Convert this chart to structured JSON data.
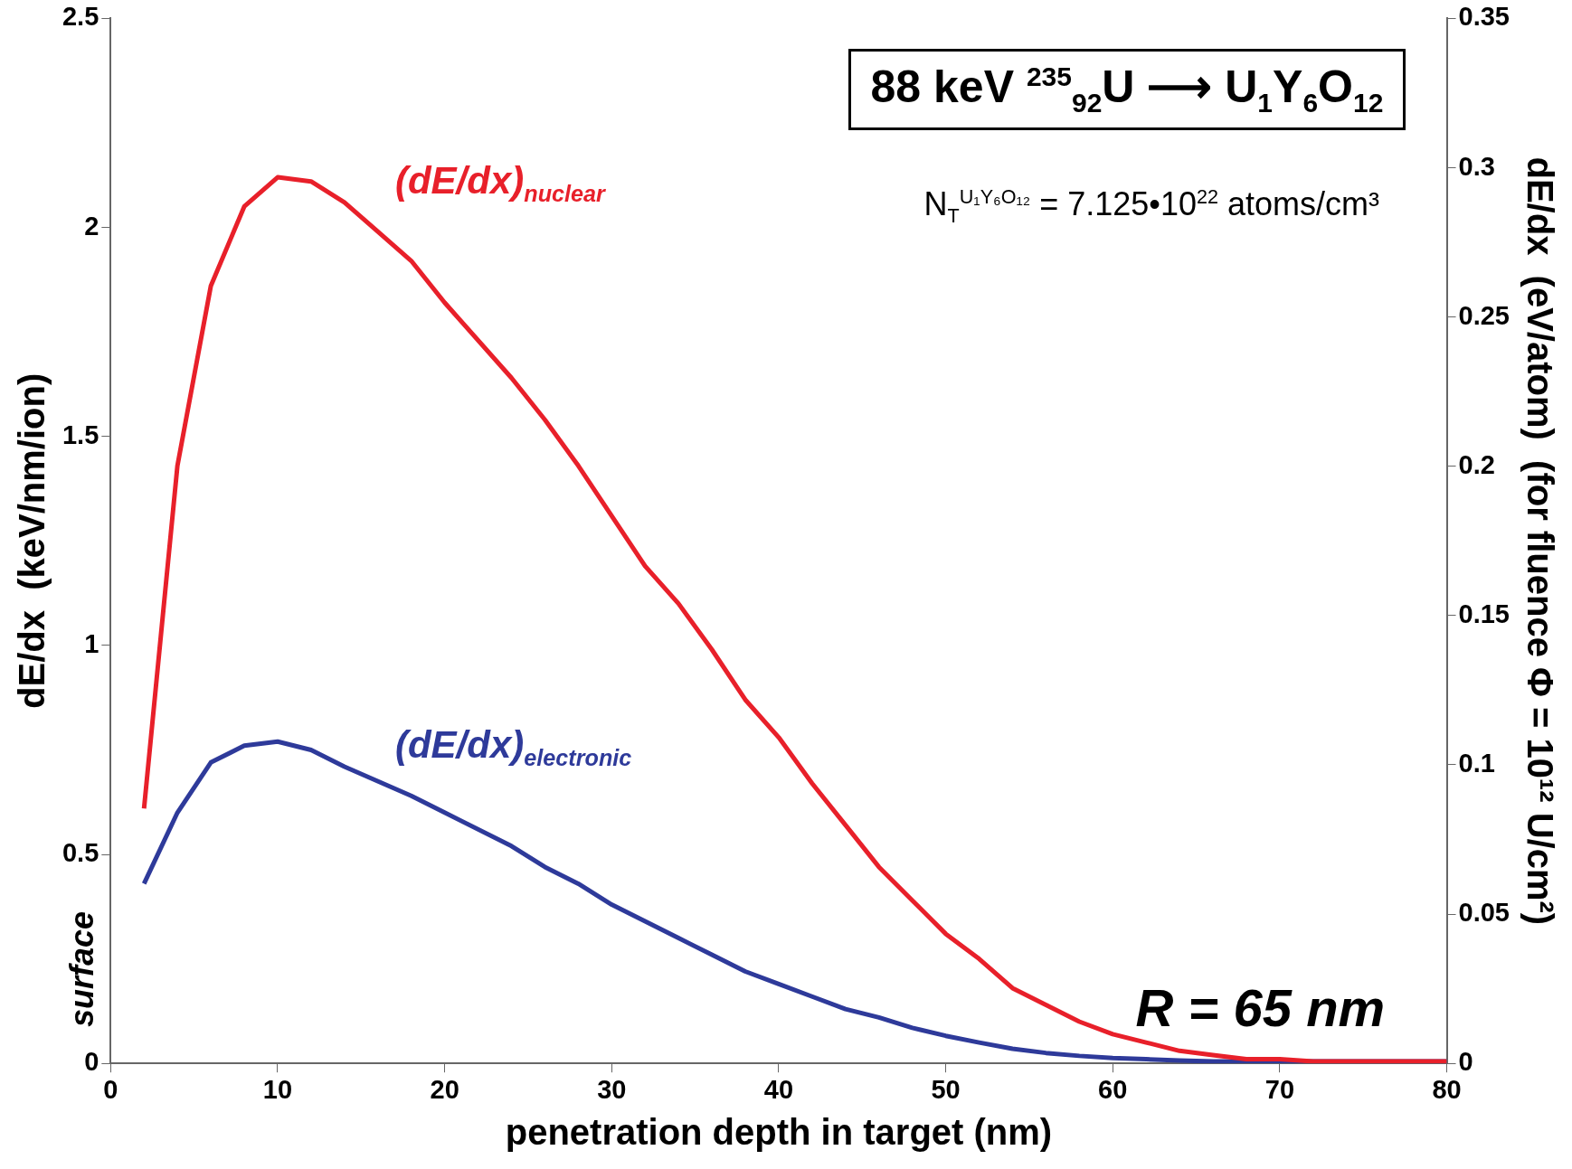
{
  "chart_data": {
    "type": "line",
    "title": "88 keV $^{235}$$_{92}$U ⟶ U$_{1}$Y$_{6}$O$_{12}$",
    "xlabel": "penetration depth in target (nm)",
    "ylabel": "dE/dx  (keV/nm/ion)",
    "y2label": "dE/dx  (eV/atom)  (for fluence Φ = 10¹² U/cm²)",
    "annotations": [
      "N$_{T}$$^{U₁Y₆O₁₂}$ = 7.125•10$^{22}$ atoms/cm³",
      "R = 65 nm",
      "surface"
    ],
    "x": [
      2,
      4,
      6,
      8,
      10,
      12,
      14,
      18,
      20,
      24,
      26,
      28,
      30,
      32,
      34,
      36,
      38,
      40,
      42,
      44,
      46,
      48,
      50,
      52,
      54,
      56,
      58,
      60,
      62,
      64,
      66,
      68,
      70,
      72,
      76,
      80
    ],
    "series": [
      {
        "name": "(dE/dx)$_{nuclear}$",
        "color": "#e8202a",
        "values": [
          0.61,
          1.43,
          1.86,
          2.05,
          2.12,
          2.11,
          2.06,
          1.92,
          1.82,
          1.64,
          1.54,
          1.43,
          1.31,
          1.19,
          1.1,
          0.99,
          0.87,
          0.78,
          0.67,
          0.57,
          0.47,
          0.39,
          0.31,
          0.25,
          0.18,
          0.14,
          0.1,
          0.07,
          0.05,
          0.03,
          0.02,
          0.01,
          0.01,
          0.005,
          0.005,
          0.005
        ]
      },
      {
        "name": "(dE/dx)$_{electronic}$",
        "color": "#2e3a9a",
        "values": [
          0.43,
          0.6,
          0.72,
          0.76,
          0.77,
          0.75,
          0.71,
          0.64,
          0.6,
          0.52,
          0.47,
          0.43,
          0.38,
          0.34,
          0.3,
          0.26,
          0.22,
          0.19,
          0.16,
          0.13,
          0.11,
          0.085,
          0.066,
          0.05,
          0.035,
          0.025,
          0.018,
          0.013,
          0.01,
          0.007,
          0.005,
          0.005,
          0.005,
          0.005,
          0.005,
          0.005
        ]
      }
    ],
    "xlim": [
      0,
      80
    ],
    "xticks": [
      0,
      10,
      20,
      30,
      40,
      50,
      60,
      70,
      80
    ],
    "ylim": [
      0,
      2.5
    ],
    "yticks": [
      0,
      0.5,
      1,
      1.5,
      2,
      2.5
    ],
    "y2lim": [
      0,
      0.35
    ],
    "y2ticks": [
      0,
      0.05,
      0.1,
      0.15,
      0.2,
      0.25,
      0.3,
      0.35
    ],
    "grid": false,
    "legend": false,
    "marker": "none",
    "line_style": "solid"
  }
}
